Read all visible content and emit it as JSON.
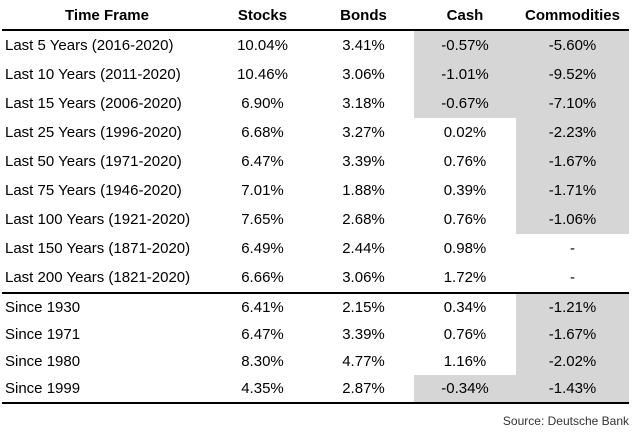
{
  "source_note": "Source: Deutsche Bank",
  "colors": {
    "shading": "#d6d6d6",
    "rule": "#000000",
    "text": "#000000"
  },
  "chart_data": {
    "type": "table",
    "title": "",
    "columns": [
      "Time Frame",
      "Stocks",
      "Bonds",
      "Cash",
      "Commodities"
    ],
    "value_format": "percent",
    "shading_meaning": "gray-shaded cells are negative values",
    "sections": [
      {
        "name": "trailing-periods",
        "rows": [
          {
            "label": "Last 5 Years (2016-2020)",
            "values": [
              "10.04%",
              "3.41%",
              "-0.57%",
              "-5.60%"
            ],
            "shaded": [
              false,
              false,
              true,
              true
            ]
          },
          {
            "label": "Last 10 Years (2011-2020)",
            "values": [
              "10.46%",
              "3.06%",
              "-1.01%",
              "-9.52%"
            ],
            "shaded": [
              false,
              false,
              true,
              true
            ]
          },
          {
            "label": "Last 15 Years (2006-2020)",
            "values": [
              "6.90%",
              "3.18%",
              "-0.67%",
              "-7.10%"
            ],
            "shaded": [
              false,
              false,
              true,
              true
            ]
          },
          {
            "label": "Last 25 Years (1996-2020)",
            "values": [
              "6.68%",
              "3.27%",
              "0.02%",
              "-2.23%"
            ],
            "shaded": [
              false,
              false,
              false,
              true
            ]
          },
          {
            "label": "Last 50 Years (1971-2020)",
            "values": [
              "6.47%",
              "3.39%",
              "0.76%",
              "-1.67%"
            ],
            "shaded": [
              false,
              false,
              false,
              true
            ]
          },
          {
            "label": "Last 75 Years (1946-2020)",
            "values": [
              "7.01%",
              "1.88%",
              "0.39%",
              "-1.71%"
            ],
            "shaded": [
              false,
              false,
              false,
              true
            ]
          },
          {
            "label": "Last 100 Years (1921-2020)",
            "values": [
              "7.65%",
              "2.68%",
              "0.76%",
              "-1.06%"
            ],
            "shaded": [
              false,
              false,
              false,
              true
            ]
          },
          {
            "label": "Last 150 Years (1871-2020)",
            "values": [
              "6.49%",
              "2.44%",
              "0.98%",
              "-"
            ],
            "shaded": [
              false,
              false,
              false,
              false
            ]
          },
          {
            "label": "Last 200 Years (1821-2020)",
            "values": [
              "6.66%",
              "3.06%",
              "1.72%",
              "-"
            ],
            "shaded": [
              false,
              false,
              false,
              false
            ]
          }
        ]
      },
      {
        "name": "since-years",
        "rows": [
          {
            "label": "Since 1930",
            "values": [
              "6.41%",
              "2.15%",
              "0.34%",
              "-1.21%"
            ],
            "shaded": [
              false,
              false,
              false,
              true
            ]
          },
          {
            "label": "Since 1971",
            "values": [
              "6.47%",
              "3.39%",
              "0.76%",
              "-1.67%"
            ],
            "shaded": [
              false,
              false,
              false,
              true
            ]
          },
          {
            "label": "Since 1980",
            "values": [
              "8.30%",
              "4.77%",
              "1.16%",
              "-2.02%"
            ],
            "shaded": [
              false,
              false,
              false,
              true
            ]
          },
          {
            "label": "Since 1999",
            "values": [
              "4.35%",
              "2.87%",
              "-0.34%",
              "-1.43%"
            ],
            "shaded": [
              false,
              false,
              true,
              true
            ]
          }
        ]
      }
    ]
  }
}
